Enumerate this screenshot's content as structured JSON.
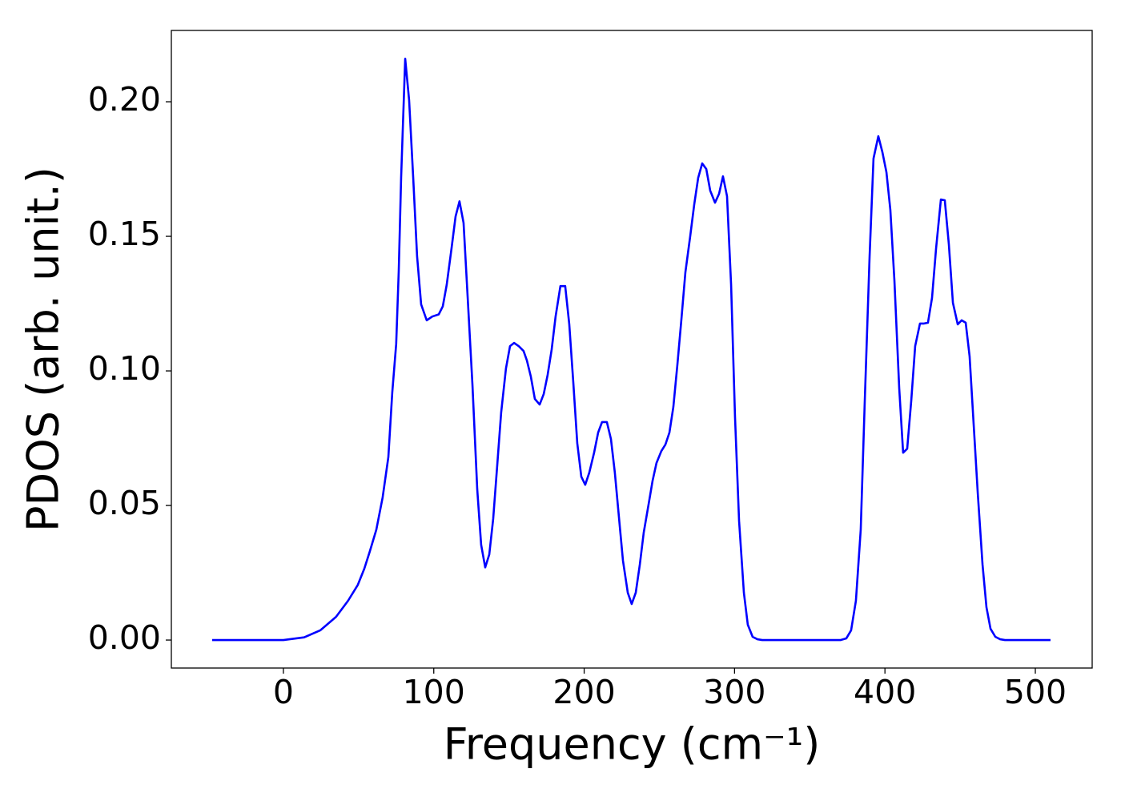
{
  "chart_data": {
    "type": "line",
    "x_label": "Frequency (cm⁻¹)",
    "y_label": "PDOS (arb. unit.)",
    "color": "#0000ff",
    "xlim": [
      -74.5,
      537.8
    ],
    "ylim": [
      -0.0104,
      0.2265
    ],
    "xticks": [
      0,
      100,
      200,
      300,
      400,
      500
    ],
    "yticks": [
      {
        "value": 0,
        "label": "0.00"
      },
      0.05,
      {
        "value": 0.1,
        "label": "0.10"
      },
      0.15,
      {
        "value": 0.2,
        "label": "0.20"
      }
    ],
    "x": [
      -47.4,
      0,
      13.8,
      24.5,
      35,
      43,
      49.5,
      53.8,
      57.5,
      61.8,
      66,
      69.8,
      72.4,
      75,
      76.7,
      78.3,
      81,
      83.6,
      86.3,
      88.9,
      91.6,
      95.3,
      99,
      103.3,
      106,
      108.6,
      111.8,
      114.5,
      117.1,
      119.8,
      122.5,
      125.7,
      128.9,
      131.5,
      134.2,
      136.9,
      139.5,
      142.2,
      144.8,
      148,
      150.7,
      153.4,
      156.5,
      159.7,
      161.9,
      164.5,
      167.2,
      170.4,
      173.1,
      175.7,
      178.4,
      181,
      184.2,
      187.4,
      190.1,
      192.8,
      195.4,
      198.1,
      200.7,
      203.4,
      206.6,
      209.3,
      211.9,
      215.1,
      217.8,
      220.4,
      223.1,
      225.8,
      229,
      231.6,
      234.3,
      237,
      239.6,
      242.8,
      245.5,
      248.1,
      251.3,
      254,
      256.7,
      259.3,
      262,
      264.6,
      267.3,
      270.5,
      273.2,
      275.8,
      278.5,
      281.2,
      283.8,
      287,
      289.7,
      292.3,
      295,
      297.7,
      300.3,
      303,
      306.2,
      308.8,
      312,
      315.2,
      318.4,
      370.6,
      374.3,
      377.5,
      380.7,
      383.9,
      386.6,
      389.8,
      392.4,
      395.6,
      398.3,
      401,
      403.6,
      406.3,
      409.5,
      412.1,
      414.8,
      417.5,
      420.1,
      423.3,
      426,
      428.6,
      431.3,
      434,
      437.2,
      439.8,
      442.5,
      445.2,
      448.4,
      451,
      453.7,
      456.3,
      459,
      461.7,
      464.9,
      467.5,
      470.2,
      473.4,
      476.6,
      479.8,
      510.1
    ],
    "values": [
      0,
      0,
      0.001,
      0.0036,
      0.0086,
      0.0146,
      0.0205,
      0.0265,
      0.033,
      0.041,
      0.053,
      0.068,
      0.092,
      0.11,
      0.137,
      0.172,
      0.216,
      0.2006,
      0.172,
      0.1426,
      0.1247,
      0.1188,
      0.1202,
      0.121,
      0.124,
      0.132,
      0.1455,
      0.1574,
      0.163,
      0.155,
      0.1277,
      0.095,
      0.056,
      0.0354,
      0.027,
      0.0318,
      0.045,
      0.065,
      0.0845,
      0.1009,
      0.1092,
      0.1104,
      0.1092,
      0.1074,
      0.1039,
      0.098,
      0.0896,
      0.0875,
      0.0914,
      0.0985,
      0.108,
      0.1202,
      0.1315,
      0.1315,
      0.1173,
      0.0955,
      0.0732,
      0.0607,
      0.0577,
      0.0622,
      0.0696,
      0.0771,
      0.081,
      0.081,
      0.0747,
      0.0622,
      0.0458,
      0.0295,
      0.0176,
      0.0134,
      0.0176,
      0.028,
      0.0399,
      0.0503,
      0.0592,
      0.0658,
      0.0702,
      0.0726,
      0.0771,
      0.0866,
      0.1024,
      0.1188,
      0.1366,
      0.15,
      0.1619,
      0.1717,
      0.1771,
      0.175,
      0.167,
      0.1625,
      0.1658,
      0.1723,
      0.1649,
      0.1321,
      0.083,
      0.0443,
      0.0176,
      0.0057,
      0.0012,
      0.0003,
      0,
      0,
      0.0006,
      0.0036,
      0.0146,
      0.041,
      0.089,
      0.1426,
      0.1789,
      0.1872,
      0.1813,
      0.1738,
      0.1598,
      0.1336,
      0.0935,
      0.0696,
      0.0711,
      0.089,
      0.1092,
      0.1176,
      0.1176,
      0.1179,
      0.1271,
      0.1455,
      0.1637,
      0.1634,
      0.147,
      0.1253,
      0.1173,
      0.1188,
      0.1179,
      0.1054,
      0.0801,
      0.0548,
      0.028,
      0.0122,
      0.0042,
      0.0012,
      0.0003,
      0,
      0
    ]
  }
}
